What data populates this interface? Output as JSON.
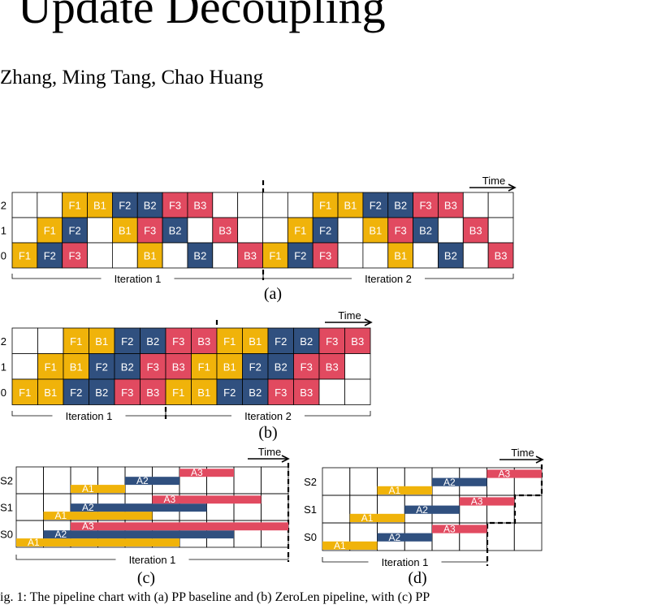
{
  "header": {
    "title": "Update Decoupling",
    "authors": "Zhang, Ming Tang, Chao Huang"
  },
  "figures": [
    {
      "caption": "(a)",
      "time_label": "Time",
      "iterations": [
        "Iteration 1",
        "Iteration 2"
      ],
      "rows": [
        {
          "label": "2",
          "cells": [
            null,
            null,
            "F1",
            "B1",
            "F2",
            "B2",
            "F3",
            "B3",
            null,
            null,
            null,
            null,
            "F1",
            "B1",
            "F2",
            "B2",
            "F3",
            "B3",
            null,
            null
          ]
        },
        {
          "label": "1",
          "cells": [
            null,
            "F1",
            "F2",
            null,
            "B1",
            "F3",
            "B2",
            null,
            "B3",
            null,
            null,
            "F1",
            "F2",
            null,
            "B1",
            "F3",
            "B2",
            null,
            "B3",
            null
          ]
        },
        {
          "label": "0",
          "cells": [
            "F1",
            "F2",
            "F3",
            null,
            null,
            "B1",
            null,
            "B2",
            null,
            "B3",
            "F1",
            "F2",
            "F3",
            null,
            null,
            "B1",
            null,
            "B2",
            null,
            "B3"
          ]
        }
      ]
    },
    {
      "caption": "(b)",
      "time_label": "Time",
      "iterations": [
        "Iteration 1",
        "Iteration 2"
      ],
      "rows": [
        {
          "label": "2",
          "cells": [
            null,
            null,
            "F1",
            "B1",
            "F2",
            "B2",
            "F3",
            "B3",
            "F1",
            "B1",
            "F2",
            "B2",
            "F3",
            "B3"
          ]
        },
        {
          "label": "1",
          "cells": [
            null,
            "F1",
            "B1",
            "F2",
            "B2",
            "F3",
            "B3",
            "F1",
            "B1",
            "F2",
            "B2",
            "F3",
            "B3",
            null
          ]
        },
        {
          "label": "0",
          "cells": [
            "F1",
            "B1",
            "F2",
            "B2",
            "F3",
            "B3",
            "F1",
            "B1",
            "F2",
            "B2",
            "F3",
            "B3",
            null,
            null
          ]
        }
      ]
    },
    {
      "caption": "(c)",
      "time_label": "Time",
      "iterations": [
        "Iteration 1"
      ],
      "rows": [
        {
          "label": "S2",
          "bars": [
            {
              "name": "A1",
              "start": 2,
              "length": 2
            },
            {
              "name": "A2",
              "start": 4,
              "length": 2
            },
            {
              "name": "A3",
              "start": 6,
              "length": 2
            }
          ]
        },
        {
          "label": "S1",
          "bars": [
            {
              "name": "A1",
              "start": 1,
              "length": 4
            },
            {
              "name": "A2",
              "start": 2,
              "length": 5
            },
            {
              "name": "A3",
              "start": 5,
              "length": 4
            }
          ]
        },
        {
          "label": "S0",
          "bars": [
            {
              "name": "A1",
              "start": 0,
              "length": 6
            },
            {
              "name": "A2",
              "start": 1,
              "length": 7
            },
            {
              "name": "A3",
              "start": 2,
              "length": 8
            }
          ]
        }
      ]
    },
    {
      "caption": "(d)",
      "time_label": "Time",
      "iterations": [
        "Iteration 1"
      ],
      "rows": [
        {
          "label": "S2",
          "bars": [
            {
              "name": "A1",
              "start": 2,
              "length": 2
            },
            {
              "name": "A2",
              "start": 4,
              "length": 2
            },
            {
              "name": "A3",
              "start": 6,
              "length": 2
            }
          ]
        },
        {
          "label": "S1",
          "bars": [
            {
              "name": "A1",
              "start": 1,
              "length": 2
            },
            {
              "name": "A2",
              "start": 3,
              "length": 2
            },
            {
              "name": "A3",
              "start": 5,
              "length": 2
            }
          ]
        },
        {
          "label": "S0",
          "bars": [
            {
              "name": "A1",
              "start": 0,
              "length": 2
            },
            {
              "name": "A2",
              "start": 2,
              "length": 2
            },
            {
              "name": "A3",
              "start": 4,
              "length": 2
            }
          ]
        }
      ]
    }
  ],
  "caption": "ig. 1: The pipeline chart with (a) PP baseline and (b) ZeroLen pipeline, with (c) PP"
}
